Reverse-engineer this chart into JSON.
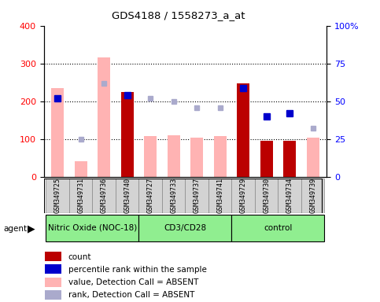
{
  "title": "GDS4188 / 1558273_a_at",
  "samples": [
    "GSM349725",
    "GSM349731",
    "GSM349736",
    "GSM349740",
    "GSM349727",
    "GSM349733",
    "GSM349737",
    "GSM349741",
    "GSM349729",
    "GSM349730",
    "GSM349734",
    "GSM349739"
  ],
  "bar_values_absent": [
    234,
    40,
    315,
    null,
    108,
    110,
    103,
    108,
    null,
    null,
    null,
    104
  ],
  "bar_values_present": [
    null,
    null,
    null,
    225,
    null,
    null,
    null,
    null,
    248,
    95,
    95,
    null
  ],
  "rank_absent": [
    null,
    100,
    248,
    null,
    208,
    200,
    183,
    183,
    null,
    null,
    null,
    128
  ],
  "rank_present": [
    208,
    null,
    null,
    215,
    null,
    null,
    null,
    null,
    235,
    160,
    168,
    null
  ],
  "ylim_left": [
    0,
    400
  ],
  "ylim_right": [
    0,
    100
  ],
  "yticks_left": [
    0,
    100,
    200,
    300,
    400
  ],
  "yticks_right": [
    0,
    25,
    50,
    75,
    100
  ],
  "ytick_labels_right": [
    "0",
    "25",
    "50",
    "75",
    "100%"
  ],
  "color_bar_absent": "#ffb3b3",
  "color_bar_present": "#bb0000",
  "color_rank_absent": "#aaaacc",
  "color_rank_present": "#0000cc",
  "group_labels": [
    "Nitric Oxide (NOC-18)",
    "CD3/CD28",
    "control"
  ],
  "group_starts": [
    0,
    4,
    8
  ],
  "group_ends": [
    4,
    8,
    12
  ],
  "group_color": "#90ee90"
}
